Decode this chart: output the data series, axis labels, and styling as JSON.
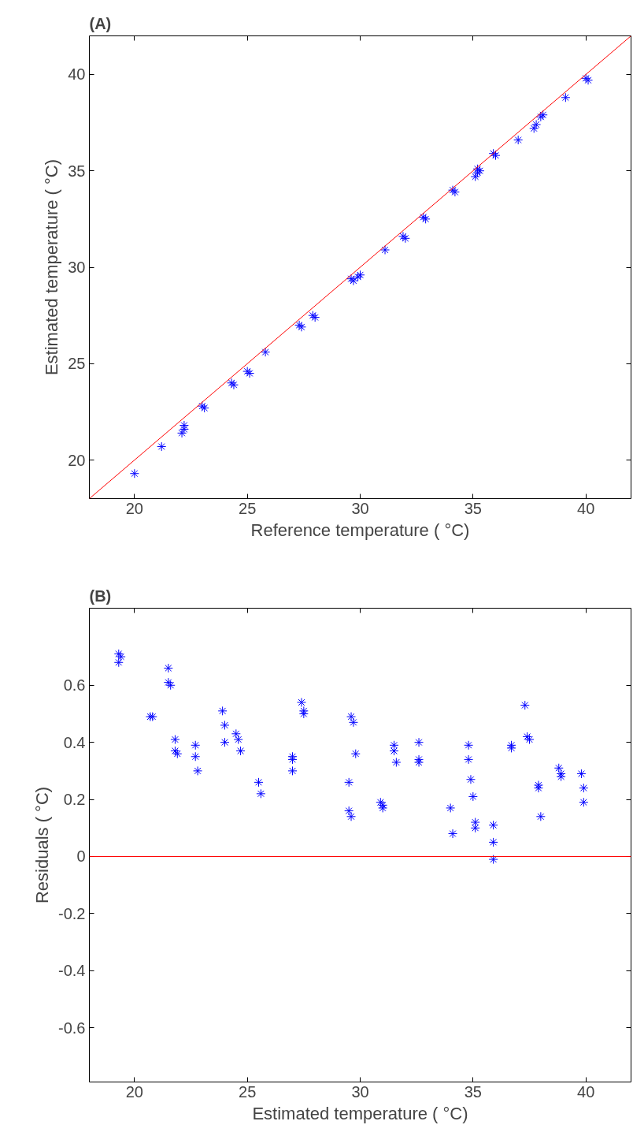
{
  "chart_data": [
    {
      "type": "scatter",
      "title": "(A)",
      "xlabel": "Reference temperature ( °C)",
      "ylabel": "Estimated temperature ( °C)",
      "xlim": [
        18,
        42
      ],
      "ylim": [
        18,
        42
      ],
      "xticks": [
        20,
        25,
        30,
        35,
        40
      ],
      "yticks": [
        20,
        25,
        30,
        35,
        40
      ],
      "grid": false,
      "series": [
        {
          "marker": "cross",
          "color": "#0000ff",
          "x": [
            20.0,
            21.2,
            22.1,
            22.2,
            22.2,
            23.0,
            23.1,
            24.3,
            24.4,
            25.0,
            25.1,
            25.8,
            27.3,
            27.4,
            27.9,
            28.0,
            29.6,
            29.7,
            30.0,
            29.9,
            31.1,
            31.9,
            32.0,
            32.8,
            32.9,
            34.1,
            34.2,
            35.1,
            35.2,
            35.2,
            35.3,
            35.9,
            36.0,
            37.0,
            37.7,
            37.8,
            38.1,
            38.0,
            39.1,
            40.0,
            40.1
          ],
          "values": [
            19.3,
            20.7,
            21.4,
            21.6,
            21.8,
            22.8,
            22.7,
            24.0,
            23.9,
            24.6,
            24.5,
            25.6,
            27.0,
            26.9,
            27.5,
            27.4,
            29.4,
            29.3,
            29.6,
            29.5,
            30.9,
            31.6,
            31.5,
            32.6,
            32.5,
            34.0,
            33.9,
            34.7,
            34.9,
            35.1,
            35.0,
            35.9,
            35.8,
            36.6,
            37.2,
            37.4,
            37.9,
            37.8,
            38.8,
            39.8,
            39.7
          ]
        },
        {
          "type": "line",
          "marker": "none",
          "color": "#ff0000",
          "x": [
            18,
            42
          ],
          "values": [
            18,
            42
          ]
        }
      ]
    },
    {
      "type": "scatter",
      "title": "(B)",
      "xlabel": "Estimated temperature ( °C)",
      "ylabel": "Residuals ( °C)",
      "xlim": [
        18,
        42
      ],
      "ylim": [
        -0.79,
        0.87
      ],
      "xticks": [
        20,
        25,
        30,
        35,
        40
      ],
      "yticks": [
        -0.6,
        -0.4,
        -0.2,
        0,
        0.2,
        0.4,
        0.6
      ],
      "grid": false,
      "marker": "cross",
      "ref_lines": [
        {
          "axis": "y",
          "value": 0,
          "color": "#ff0000"
        }
      ],
      "series": [
        {
          "color": "#0000ff",
          "x": [
            19.3,
            19.4,
            19.3,
            20.8,
            20.7,
            21.5,
            21.5,
            21.6,
            21.8,
            21.8,
            21.9,
            22.7,
            22.7,
            22.8,
            23.9,
            24.0,
            24.0,
            24.5,
            24.6,
            24.7,
            25.5,
            25.6,
            27.0,
            27.0,
            27.0,
            27.4,
            27.5,
            27.5,
            29.5,
            29.5,
            29.6,
            29.6,
            29.7,
            29.8,
            30.9,
            31.0,
            31.0,
            31.5,
            31.5,
            31.6,
            32.6,
            32.6,
            32.6,
            34.0,
            34.1,
            34.8,
            34.8,
            34.9,
            35.0,
            35.1,
            35.1,
            35.9,
            35.9,
            35.9,
            36.7,
            36.7,
            37.3,
            37.4,
            37.5,
            37.9,
            37.9,
            38.0,
            38.8,
            38.9,
            38.9,
            39.8,
            39.9,
            39.9
          ],
          "values": [
            0.71,
            0.7,
            0.68,
            0.49,
            0.49,
            0.66,
            0.61,
            0.6,
            0.41,
            0.37,
            0.36,
            0.39,
            0.35,
            0.3,
            0.51,
            0.46,
            0.4,
            0.43,
            0.41,
            0.37,
            0.26,
            0.22,
            0.35,
            0.34,
            0.3,
            0.54,
            0.51,
            0.5,
            0.26,
            0.16,
            0.14,
            0.49,
            0.47,
            0.36,
            0.19,
            0.17,
            0.18,
            0.39,
            0.37,
            0.33,
            0.4,
            0.34,
            0.33,
            0.17,
            0.08,
            0.39,
            0.34,
            0.27,
            0.21,
            0.12,
            0.1,
            0.11,
            0.05,
            -0.01,
            0.39,
            0.38,
            0.53,
            0.42,
            0.41,
            0.25,
            0.24,
            0.14,
            0.31,
            0.29,
            0.28,
            0.29,
            0.24,
            0.19
          ]
        }
      ]
    }
  ]
}
